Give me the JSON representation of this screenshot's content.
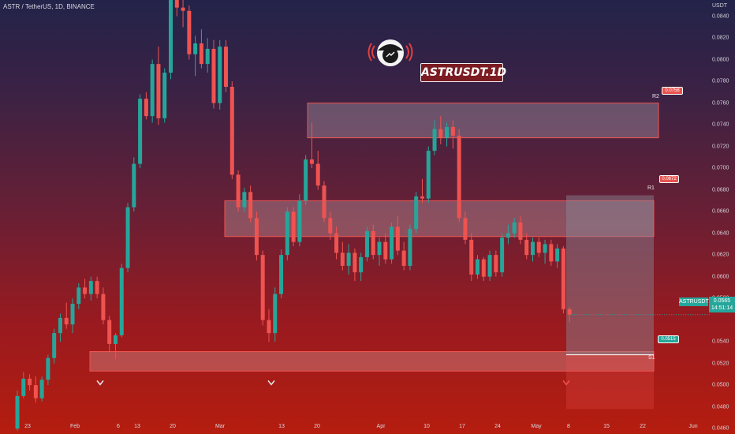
{
  "header": {
    "symbol_info": "ASTR / TetherUS, 1D, BINANCE"
  },
  "watermark": {
    "title": "ASTRUSDT.1D",
    "logo_icon": "broadcaster-face-logo"
  },
  "colors": {
    "up": "#26a69a",
    "down": "#ef5350",
    "zone_fill": "#ffffff",
    "zone_border": "#ef5350",
    "projection": "#8a8a9a"
  },
  "chart_data": {
    "type": "candlestick",
    "title": "ASTRUSDT.1D",
    "currency": "USDT",
    "y_axis": {
      "ylim": [
        0.0455,
        0.0855
      ],
      "tick_labels": [
        "0.0840",
        "0.0820",
        "0.0800",
        "0.0780",
        "0.0760",
        "0.0740",
        "0.0720",
        "0.0700",
        "0.0680",
        "0.0660",
        "0.0640",
        "0.0620",
        "0.0600",
        "0.0580",
        "0.0540",
        "0.0520",
        "0.0500",
        "0.0480",
        "0.0460"
      ]
    },
    "x_axis": {
      "tick_labels": [
        "23",
        "Feb",
        "6",
        "13",
        "20",
        "Mar",
        "13",
        "20",
        "Apr",
        "10",
        "17",
        "24",
        "May",
        "8",
        "15",
        "22",
        "Jun"
      ]
    },
    "grid": false,
    "candles_ohlc": [
      [
        0.046,
        0.0495,
        0.0458,
        0.049
      ],
      [
        0.049,
        0.0512,
        0.0488,
        0.0506
      ],
      [
        0.0506,
        0.051,
        0.0495,
        0.05
      ],
      [
        0.05,
        0.0508,
        0.0484,
        0.0488
      ],
      [
        0.0488,
        0.0508,
        0.0485,
        0.0505
      ],
      [
        0.0505,
        0.0528,
        0.05,
        0.0525
      ],
      [
        0.0525,
        0.0552,
        0.052,
        0.0548
      ],
      [
        0.0548,
        0.0566,
        0.054,
        0.0562
      ],
      [
        0.0562,
        0.0576,
        0.0552,
        0.0556
      ],
      [
        0.0556,
        0.058,
        0.0548,
        0.0575
      ],
      [
        0.0575,
        0.0594,
        0.057,
        0.059
      ],
      [
        0.059,
        0.0598,
        0.058,
        0.0584
      ],
      [
        0.0584,
        0.06,
        0.0578,
        0.0596
      ],
      [
        0.0596,
        0.06,
        0.058,
        0.0584
      ],
      [
        0.0584,
        0.059,
        0.0556,
        0.056
      ],
      [
        0.056,
        0.0564,
        0.053,
        0.0538
      ],
      [
        0.0538,
        0.0548,
        0.0524,
        0.0546
      ],
      [
        0.0546,
        0.0612,
        0.0544,
        0.0608
      ],
      [
        0.0608,
        0.0668,
        0.0604,
        0.0664
      ],
      [
        0.0664,
        0.071,
        0.066,
        0.0704
      ],
      [
        0.0704,
        0.0768,
        0.07,
        0.0764
      ],
      [
        0.0764,
        0.077,
        0.0745,
        0.0748
      ],
      [
        0.0748,
        0.08,
        0.0742,
        0.0796
      ],
      [
        0.0796,
        0.0812,
        0.074,
        0.0746
      ],
      [
        0.0746,
        0.0792,
        0.0742,
        0.0788
      ],
      [
        0.0788,
        0.086,
        0.0782,
        0.0855
      ],
      [
        0.0855,
        0.086,
        0.084,
        0.0848
      ],
      [
        0.0848,
        0.086,
        0.083,
        0.0845
      ],
      [
        0.0845,
        0.085,
        0.08,
        0.0805
      ],
      [
        0.0805,
        0.0822,
        0.0785,
        0.0815
      ],
      [
        0.0815,
        0.0828,
        0.0792,
        0.0796
      ],
      [
        0.0796,
        0.082,
        0.0788,
        0.081
      ],
      [
        0.081,
        0.0818,
        0.0755,
        0.076
      ],
      [
        0.076,
        0.0818,
        0.0754,
        0.0812
      ],
      [
        0.0812,
        0.0818,
        0.077,
        0.0775
      ],
      [
        0.0775,
        0.078,
        0.069,
        0.0694
      ],
      [
        0.0694,
        0.0698,
        0.066,
        0.0664
      ],
      [
        0.0664,
        0.0682,
        0.066,
        0.0678
      ],
      [
        0.0678,
        0.0684,
        0.065,
        0.0654
      ],
      [
        0.0654,
        0.066,
        0.0615,
        0.062
      ],
      [
        0.062,
        0.0624,
        0.0555,
        0.056
      ],
      [
        0.056,
        0.057,
        0.054,
        0.0548
      ],
      [
        0.0548,
        0.059,
        0.054,
        0.0584
      ],
      [
        0.0584,
        0.0625,
        0.058,
        0.062
      ],
      [
        0.062,
        0.0664,
        0.0615,
        0.066
      ],
      [
        0.066,
        0.0664,
        0.0628,
        0.0632
      ],
      [
        0.0632,
        0.0676,
        0.0628,
        0.067
      ],
      [
        0.067,
        0.0712,
        0.0666,
        0.0708
      ],
      [
        0.0708,
        0.0742,
        0.07,
        0.0704
      ],
      [
        0.0704,
        0.0716,
        0.068,
        0.0684
      ],
      [
        0.0684,
        0.0688,
        0.065,
        0.0654
      ],
      [
        0.0654,
        0.066,
        0.0634,
        0.064
      ],
      [
        0.064,
        0.0646,
        0.0616,
        0.0622
      ],
      [
        0.0622,
        0.0632,
        0.0606,
        0.061
      ],
      [
        0.061,
        0.063,
        0.0602,
        0.0622
      ],
      [
        0.0622,
        0.0626,
        0.0596,
        0.0604
      ],
      [
        0.0604,
        0.0622,
        0.0596,
        0.0618
      ],
      [
        0.0618,
        0.0646,
        0.0614,
        0.0642
      ],
      [
        0.0642,
        0.0648,
        0.0616,
        0.062
      ],
      [
        0.062,
        0.0636,
        0.061,
        0.0632
      ],
      [
        0.0632,
        0.064,
        0.0612,
        0.0616
      ],
      [
        0.0616,
        0.065,
        0.0612,
        0.0646
      ],
      [
        0.0646,
        0.0656,
        0.062,
        0.0624
      ],
      [
        0.0624,
        0.0632,
        0.0606,
        0.061
      ],
      [
        0.061,
        0.0648,
        0.0606,
        0.0644
      ],
      [
        0.0644,
        0.0678,
        0.064,
        0.0674
      ],
      [
        0.0674,
        0.069,
        0.0668,
        0.0672
      ],
      [
        0.0672,
        0.072,
        0.0668,
        0.0716
      ],
      [
        0.0716,
        0.0744,
        0.0712,
        0.0736
      ],
      [
        0.0736,
        0.0748,
        0.0722,
        0.0728
      ],
      [
        0.0728,
        0.0742,
        0.072,
        0.0738
      ],
      [
        0.0738,
        0.0744,
        0.0718,
        0.073
      ],
      [
        0.073,
        0.0736,
        0.065,
        0.0654
      ],
      [
        0.0654,
        0.066,
        0.063,
        0.0634
      ],
      [
        0.0634,
        0.064,
        0.0596,
        0.0602
      ],
      [
        0.0602,
        0.062,
        0.0598,
        0.0616
      ],
      [
        0.0616,
        0.0618,
        0.0596,
        0.06
      ],
      [
        0.06,
        0.0624,
        0.0596,
        0.062
      ],
      [
        0.062,
        0.0624,
        0.06,
        0.0604
      ],
      [
        0.0604,
        0.064,
        0.06,
        0.0636
      ],
      [
        0.0636,
        0.0648,
        0.063,
        0.064
      ],
      [
        0.064,
        0.0654,
        0.0636,
        0.065
      ],
      [
        0.065,
        0.0656,
        0.063,
        0.0634
      ],
      [
        0.0634,
        0.064,
        0.0616,
        0.062
      ],
      [
        0.062,
        0.0636,
        0.0614,
        0.0632
      ],
      [
        0.0632,
        0.0636,
        0.0618,
        0.0622
      ],
      [
        0.0622,
        0.0634,
        0.0612,
        0.063
      ],
      [
        0.063,
        0.0634,
        0.061,
        0.0614
      ],
      [
        0.0614,
        0.063,
        0.0608,
        0.0626
      ],
      [
        0.0626,
        0.0628,
        0.0566,
        0.057
      ],
      [
        0.057,
        0.0572,
        0.0558,
        0.0565
      ]
    ],
    "zones": [
      {
        "name": "R2",
        "price_label": "0.0758",
        "from": 0.0728,
        "to": 0.076
      },
      {
        "name": "R1",
        "price_label": "0.0672",
        "from": 0.0637,
        "to": 0.067
      },
      {
        "name": "S1",
        "price_label": "0.0515",
        "from": 0.0513,
        "to": 0.0531
      }
    ],
    "current": {
      "symbol": "ASTRUSDT",
      "price": "0.0565",
      "countdown": "14:51:14"
    }
  }
}
